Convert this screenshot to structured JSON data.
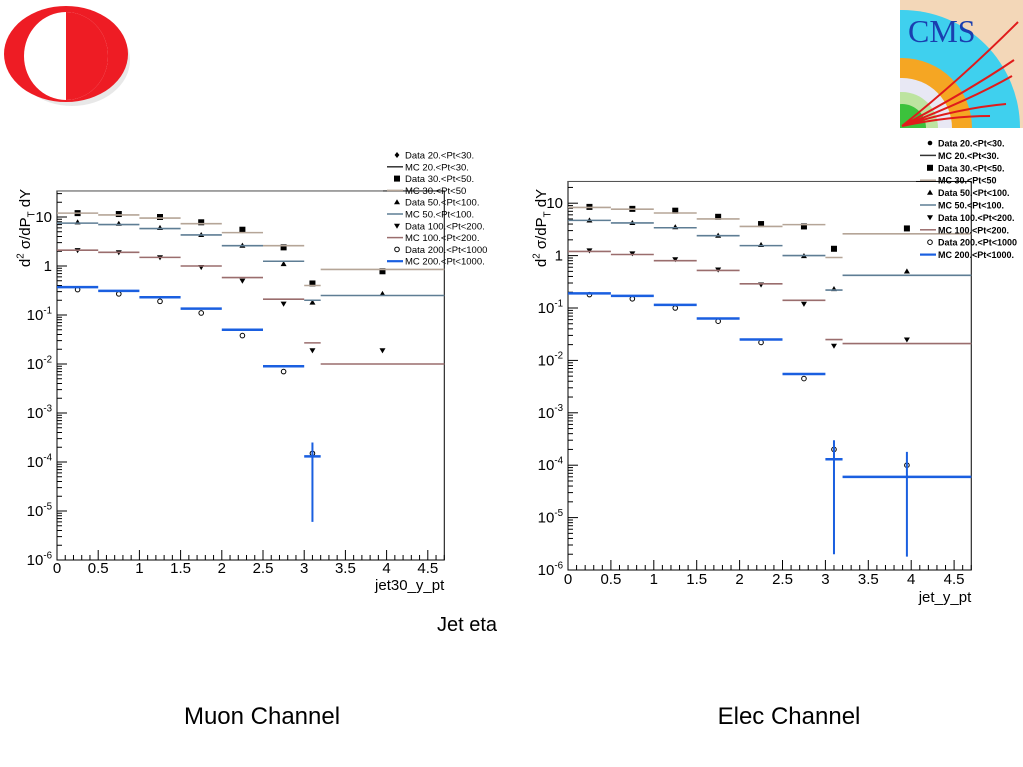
{
  "slide": {
    "center_label": "Jet eta",
    "left_caption": "Muon Channel",
    "right_caption": "Elec Channel",
    "left_logo": {
      "icon": "metu-logo",
      "colors": [
        "#ee1c24",
        "#ffffff"
      ]
    },
    "right_logo": {
      "icon": "cms-logo",
      "text": "CMS",
      "colors": [
        "#33ccee",
        "#f5a623",
        "#e01b1b",
        "#2db52d",
        "#1a3fb0"
      ]
    }
  },
  "chart_data": [
    {
      "type": "line",
      "name": "muon",
      "xlabel": "jet30_y_pt",
      "ylabel": "d^2 σ/dP_T dY",
      "xlim": [
        0,
        4.7
      ],
      "ylim": [
        1e-06,
        34
      ],
      "yscale": "log",
      "grid": false,
      "legend": "top-right",
      "x_ticks": [
        "0",
        "0.5",
        "1",
        "1.5",
        "2",
        "2.5",
        "3",
        "3.5",
        "4",
        "4.5"
      ],
      "y_ticks": [
        "10^-6",
        "10^-5",
        "10^-4",
        "10^-3",
        "10^-2",
        "10^-1",
        "1",
        "10"
      ],
      "bin_edges": [
        0,
        0.5,
        1,
        1.5,
        2,
        2.5,
        3,
        3.2,
        4.7
      ],
      "bin_centers": [
        0.25,
        0.75,
        1.25,
        1.75,
        2.25,
        2.75,
        3.1,
        3.95
      ],
      "series": [
        {
          "name": "Data 20.<Pt<30.",
          "kind": "data",
          "marker": "diamond",
          "color": "#000000",
          "values": []
        },
        {
          "name": "MC 20.<Pt<30.",
          "kind": "mc",
          "color": "#333333",
          "values": []
        },
        {
          "name": "Data 30.<Pt<50.",
          "kind": "data",
          "marker": "square",
          "color": "#000000",
          "values": [
            12,
            11.5,
            10,
            7.8,
            5.5,
            2.4,
            0.44,
            0.78
          ]
        },
        {
          "name": "MC 30.<Pt<50",
          "kind": "mc",
          "color": "#b5a597",
          "values": [
            12,
            11,
            9.5,
            7.3,
            4.8,
            2.6,
            0.4,
            0.85
          ]
        },
        {
          "name": "Data 50.<Pt<100.",
          "kind": "data",
          "marker": "triangle",
          "color": "#000000",
          "values": [
            7.8,
            7.3,
            6.0,
            4.3,
            2.6,
            1.1,
            0.18,
            0.27
          ]
        },
        {
          "name": "MC 50.<Pt<100.",
          "kind": "mc",
          "color": "#5e7d94",
          "values": [
            7.5,
            7.0,
            5.8,
            4.3,
            2.6,
            1.25,
            0.2,
            0.25
          ]
        },
        {
          "name": "Data 100.<Pt<200.",
          "kind": "data",
          "marker": "triangle-down",
          "color": "#000000",
          "values": [
            2.1,
            1.9,
            1.5,
            0.95,
            0.5,
            0.17,
            0.019,
            0.019
          ]
        },
        {
          "name": "MC 100.<Pt<200.",
          "kind": "mc",
          "color": "#9a6d6d",
          "values": [
            2.1,
            1.9,
            1.5,
            1.0,
            0.58,
            0.21,
            0.027,
            0.01
          ]
        },
        {
          "name": "Data 200.<Pt<1000",
          "kind": "data",
          "marker": "circle-open",
          "color": "#000000",
          "values": [
            0.33,
            0.27,
            0.19,
            0.11,
            0.038,
            0.007,
            0.00015,
            null
          ]
        },
        {
          "name": "MC 200.<Pt<1000.",
          "kind": "mc",
          "color": "#1a5fe0",
          "values": [
            0.37,
            0.31,
            0.23,
            0.135,
            0.05,
            0.009,
            0.00013,
            null
          ],
          "errors": [
            {
              "x": 3.1,
              "low": 6e-06,
              "high": 0.00025
            }
          ]
        }
      ]
    },
    {
      "type": "line",
      "name": "elec",
      "xlabel": "jet_y_pt",
      "ylabel": "d^2 σ/dP_T dY",
      "xlim": [
        0,
        4.7
      ],
      "ylim": [
        1e-06,
        26
      ],
      "yscale": "log",
      "grid": false,
      "legend": "top-right",
      "x_ticks": [
        "0",
        "0.5",
        "1",
        "1.5",
        "2",
        "2.5",
        "3",
        "3.5",
        "4",
        "4.5"
      ],
      "y_ticks": [
        "10^-6",
        "10^-5",
        "10^-4",
        "10^-3",
        "10^-2",
        "10^-1",
        "1",
        "10"
      ],
      "bin_edges": [
        0,
        0.5,
        1,
        1.5,
        2,
        2.5,
        3,
        3.2,
        4.7
      ],
      "bin_centers": [
        0.25,
        0.75,
        1.25,
        1.75,
        2.25,
        2.75,
        3.1,
        3.95
      ],
      "series": [
        {
          "name": "Data 20.<Pt<30.",
          "kind": "data",
          "marker": "circle",
          "color": "#000000",
          "values": []
        },
        {
          "name": "MC 20.<Pt<30.",
          "kind": "mc",
          "color": "#333333",
          "values": []
        },
        {
          "name": "Data 30.<Pt<50.",
          "kind": "data",
          "marker": "square",
          "color": "#000000",
          "values": [
            8.5,
            7.8,
            7.2,
            5.5,
            4.0,
            3.6,
            1.35,
            3.3
          ]
        },
        {
          "name": "MC 30.<Pt<50",
          "kind": "mc",
          "color": "#b5a597",
          "values": [
            8.3,
            7.7,
            6.5,
            5.0,
            3.6,
            3.9,
            0.92,
            2.6
          ]
        },
        {
          "name": "Data 50.<Pt<100.",
          "kind": "data",
          "marker": "triangle",
          "color": "#000000",
          "values": [
            4.7,
            4.2,
            3.5,
            2.4,
            1.6,
            0.98,
            0.23,
            0.5
          ]
        },
        {
          "name": "MC 50.<Pt<100.",
          "kind": "mc",
          "color": "#5e7d94",
          "values": [
            4.7,
            4.2,
            3.4,
            2.4,
            1.55,
            1.0,
            0.22,
            0.42
          ]
        },
        {
          "name": "Data 100.<Pt<200.",
          "kind": "data",
          "marker": "triangle-down",
          "color": "#000000",
          "values": [
            1.25,
            1.1,
            0.85,
            0.54,
            0.28,
            0.12,
            0.019,
            0.025
          ]
        },
        {
          "name": "MC 100.<Pt<200.",
          "kind": "mc",
          "color": "#9a6d6d",
          "values": [
            1.2,
            1.05,
            0.8,
            0.52,
            0.29,
            0.14,
            0.025,
            0.021
          ]
        },
        {
          "name": "Data 200.<Pt<1000",
          "kind": "data",
          "marker": "circle-open",
          "color": "#000000",
          "values": [
            0.18,
            0.15,
            0.1,
            0.056,
            0.022,
            0.0045,
            0.0002,
            0.0001
          ]
        },
        {
          "name": "MC 200.<Pt<1000.",
          "kind": "mc",
          "color": "#1a5fe0",
          "values": [
            0.19,
            0.17,
            0.115,
            0.063,
            0.025,
            0.0055,
            0.00013,
            6e-05
          ],
          "errors": [
            {
              "x": 3.1,
              "low": 2e-06,
              "high": 0.0003
            },
            {
              "x": 3.95,
              "low": 1.8e-06,
              "high": 0.00018
            }
          ]
        }
      ]
    }
  ]
}
